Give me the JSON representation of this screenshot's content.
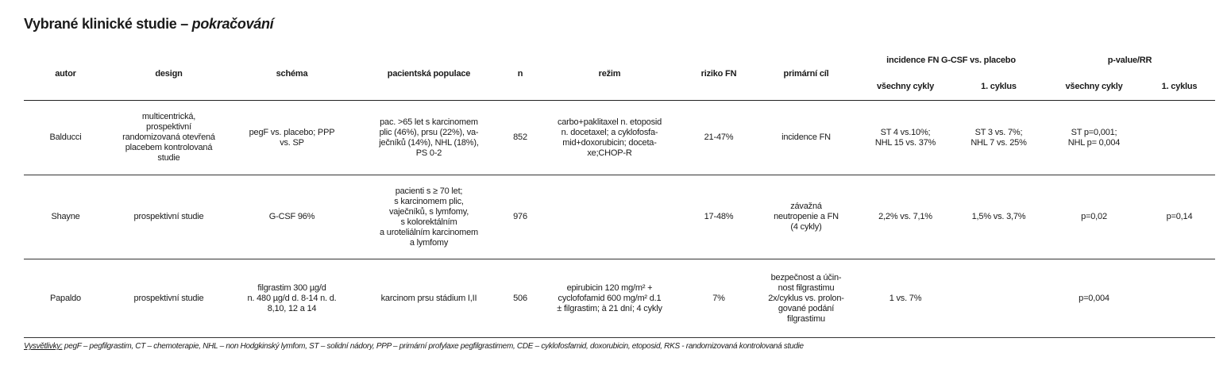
{
  "title": {
    "main": "Vybrané klinické studie – ",
    "italic": "pokračování"
  },
  "headers": {
    "autor": "autor",
    "design": "design",
    "schema": "schéma",
    "populace": "pacientská populace",
    "n": "n",
    "rezim": "režim",
    "riziko": "riziko FN",
    "cil": "primární cíl",
    "incidence": "incidence FN G-CSF vs. placebo",
    "pvalue": "p-value/RR",
    "vsechny1": "všechny cykly",
    "cyklus1": "1. cyklus",
    "vsechny2": "všechny cykly",
    "cyklus2": "1. cyklus"
  },
  "rows": [
    {
      "autor": "Balducci",
      "design": "multicentrická,\nprospektivní\nrandomizovaná otevřená\nplacebem kontrolovaná\nstudie",
      "schema": "pegF vs. placebo; PPP\nvs. SP",
      "populace": "pac. >65 let s karcinomem\nplic (46%), prsu (22%), va-\nječníků (14%), NHL (18%),\nPS 0-2",
      "n": "852",
      "rezim": "carbo+paklitaxel n. etoposid\nn. docetaxel; a cyklofosfa-\nmid+doxorubicin; doceta-\nxe;CHOP-R",
      "riziko": "21-47%",
      "cil": "incidence FN",
      "inc_vsechny": "ST 4 vs.10%;\nNHL 15 vs. 37%",
      "inc_1": "ST 3 vs. 7%;\nNHL 7 vs. 25%",
      "p_vsechny": "ST p=0,001;\nNHL p= 0,004",
      "p_1": ""
    },
    {
      "autor": "Shayne",
      "design": "prospektivní studie",
      "schema": "G-CSF 96%",
      "populace": "pacienti s ≥ 70 let;\ns karcinomem plic,\nvaječníků, s lymfomy,\ns kolorektálním\na uroteliálním karcinomem\na lymfomy",
      "n": "976",
      "rezim": "",
      "riziko": "17-48%",
      "cil": "závažná\nneutropenie a FN\n(4 cykly)",
      "inc_vsechny": "2,2% vs. 7,1%",
      "inc_1": "1,5% vs. 3,7%",
      "p_vsechny": "p=0,02",
      "p_1": "p=0,14"
    },
    {
      "autor": "Papaldo",
      "design": "prospektivní studie",
      "schema": "filgrastim 300 µg/d\nn. 480 µg/d d. 8-14 n. d.\n8,10, 12 a 14",
      "populace": "karcinom prsu stádium I,II",
      "n": "506",
      "rezim": "epirubicin 120 mg/m² +\ncyclofofamid 600 mg/m² d.1\n± filgrastim; à 21 dní; 4 cykly",
      "riziko": "7%",
      "cil": "bezpečnost a účin-\nnost filgrastimu\n2x/cyklus vs. prolon-\ngované podání\nfilgrastimu",
      "inc_vsechny": "1 vs. 7%",
      "inc_1": "",
      "p_vsechny": "p=0,004",
      "p_1": ""
    }
  ],
  "footnote": {
    "label": "Vysvětlivky:",
    "text": " pegF – pegfilgrastim, CT – chemoterapie, NHL – non Hodgkinský lymfom, ST – solidní nádory, PPP – primární profylaxe pegfilgrastimem, CDE – cyklofosfamid, doxorubicin, etoposid, RKS - randomizovaná kontrolovaná studie"
  }
}
